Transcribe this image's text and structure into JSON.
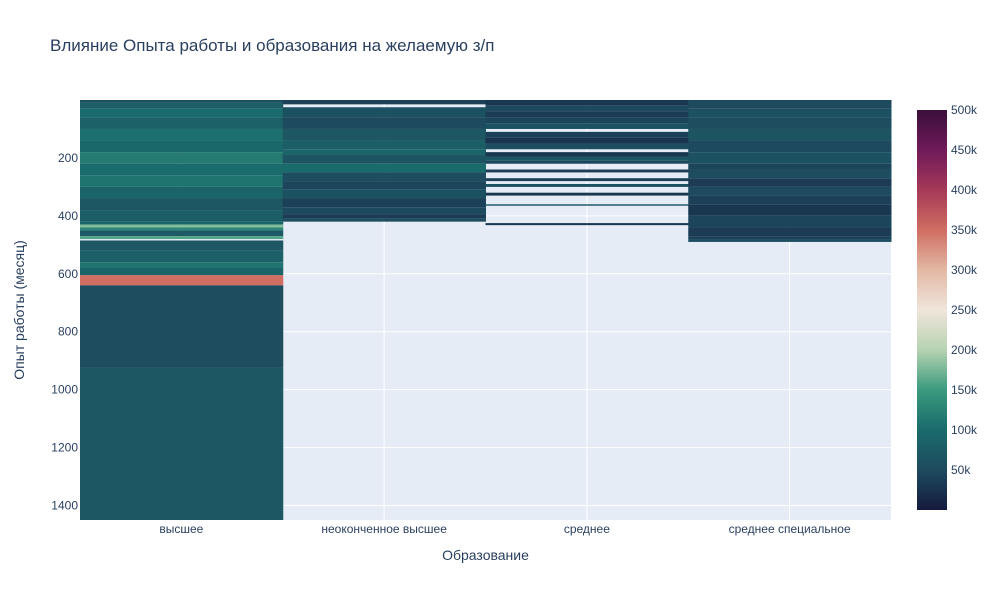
{
  "chart_data": {
    "type": "heatmap",
    "title": "Влияние Опыта работы и образования на желаемую з/п",
    "xlabel": "Образование",
    "ylabel": "Опыт работы (месяц)",
    "categories": [
      "высшее",
      "неоконченное высшее",
      "среднее",
      "среднее специальное"
    ],
    "y_ticks": [
      200,
      400,
      600,
      800,
      1000,
      1200,
      1400
    ],
    "ylim": [
      0,
      1450
    ],
    "y_reversed": true,
    "grid": true,
    "colorbar": {
      "min": 0,
      "max": 500000,
      "ticks": [
        50000,
        100000,
        150000,
        200000,
        250000,
        300000,
        350000,
        400000,
        450000,
        500000
      ],
      "tick_labels": [
        "50k",
        "100k",
        "150k",
        "200k",
        "250k",
        "300k",
        "350k",
        "400k",
        "450k",
        "500k"
      ],
      "colorscale": [
        [
          0.0,
          "#151a3c"
        ],
        [
          0.1,
          "#1d4a5e"
        ],
        [
          0.2,
          "#1a6b6b"
        ],
        [
          0.3,
          "#3a9a7e"
        ],
        [
          0.4,
          "#b6d3b1"
        ],
        [
          0.5,
          "#f0e5db"
        ],
        [
          0.6,
          "#e3b8a4"
        ],
        [
          0.7,
          "#cf6e61"
        ],
        [
          0.8,
          "#a53958"
        ],
        [
          0.9,
          "#6f1a5a"
        ],
        [
          1.0,
          "#3b0f3a"
        ]
      ]
    },
    "columns": [
      {
        "category": "высшее",
        "segments": [
          {
            "y0": 0,
            "y1": 10,
            "value": 60000
          },
          {
            "y0": 10,
            "y1": 30,
            "value": 80000
          },
          {
            "y0": 30,
            "y1": 60,
            "value": 100000
          },
          {
            "y0": 60,
            "y1": 100,
            "value": 85000
          },
          {
            "y0": 100,
            "y1": 140,
            "value": 105000
          },
          {
            "y0": 140,
            "y1": 180,
            "value": 95000
          },
          {
            "y0": 180,
            "y1": 220,
            "value": 115000
          },
          {
            "y0": 220,
            "y1": 260,
            "value": 100000
          },
          {
            "y0": 260,
            "y1": 300,
            "value": 110000
          },
          {
            "y0": 300,
            "y1": 340,
            "value": 90000
          },
          {
            "y0": 340,
            "y1": 380,
            "value": 70000
          },
          {
            "y0": 380,
            "y1": 420,
            "value": 80000
          },
          {
            "y0": 420,
            "y1": 430,
            "value": 90000
          },
          {
            "y0": 430,
            "y1": 440,
            "value": 180000
          },
          {
            "y0": 440,
            "y1": 450,
            "value": 130000
          },
          {
            "y0": 450,
            "y1": 470,
            "value": 75000
          },
          {
            "y0": 470,
            "y1": 480,
            "value": 160000
          },
          {
            "y0": 480,
            "y1": 485,
            "value": 0
          },
          {
            "y0": 485,
            "y1": 520,
            "value": 70000
          },
          {
            "y0": 520,
            "y1": 560,
            "value": 85000
          },
          {
            "y0": 560,
            "y1": 580,
            "value": 110000
          },
          {
            "y0": 580,
            "y1": 605,
            "value": 90000
          },
          {
            "y0": 605,
            "y1": 640,
            "value": 350000
          },
          {
            "y0": 640,
            "y1": 925,
            "value": 55000
          },
          {
            "y0": 925,
            "y1": 1450,
            "value": 70000
          }
        ]
      },
      {
        "category": "неоконченное высшее",
        "segments": [
          {
            "y0": 0,
            "y1": 15,
            "value": 40000
          },
          {
            "y0": 15,
            "y1": 25,
            "value": 0
          },
          {
            "y0": 25,
            "y1": 60,
            "value": 60000
          },
          {
            "y0": 60,
            "y1": 100,
            "value": 50000
          },
          {
            "y0": 100,
            "y1": 140,
            "value": 70000
          },
          {
            "y0": 140,
            "y1": 170,
            "value": 80000
          },
          {
            "y0": 170,
            "y1": 190,
            "value": 90000
          },
          {
            "y0": 190,
            "y1": 220,
            "value": 65000
          },
          {
            "y0": 220,
            "y1": 250,
            "value": 100000
          },
          {
            "y0": 250,
            "y1": 280,
            "value": 55000
          },
          {
            "y0": 280,
            "y1": 310,
            "value": 45000
          },
          {
            "y0": 310,
            "y1": 340,
            "value": 60000
          },
          {
            "y0": 340,
            "y1": 370,
            "value": 40000
          },
          {
            "y0": 370,
            "y1": 395,
            "value": 50000
          },
          {
            "y0": 395,
            "y1": 410,
            "value": 35000
          },
          {
            "y0": 410,
            "y1": 420,
            "value": 55000
          }
        ]
      },
      {
        "category": "среднее",
        "segments": [
          {
            "y0": 0,
            "y1": 20,
            "value": 30000
          },
          {
            "y0": 20,
            "y1": 40,
            "value": 50000
          },
          {
            "y0": 40,
            "y1": 60,
            "value": 35000
          },
          {
            "y0": 60,
            "y1": 80,
            "value": 45000
          },
          {
            "y0": 80,
            "y1": 100,
            "value": 60000
          },
          {
            "y0": 100,
            "y1": 110,
            "value": 0
          },
          {
            "y0": 110,
            "y1": 130,
            "value": 40000
          },
          {
            "y0": 130,
            "y1": 150,
            "value": 25000
          },
          {
            "y0": 150,
            "y1": 170,
            "value": 55000
          },
          {
            "y0": 170,
            "y1": 180,
            "value": 0
          },
          {
            "y0": 180,
            "y1": 195,
            "value": 30000
          },
          {
            "y0": 195,
            "y1": 210,
            "value": 70000
          },
          {
            "y0": 210,
            "y1": 220,
            "value": 45000
          },
          {
            "y0": 220,
            "y1": 240,
            "value": 0
          },
          {
            "y0": 240,
            "y1": 250,
            "value": 35000
          },
          {
            "y0": 250,
            "y1": 270,
            "value": 0
          },
          {
            "y0": 270,
            "y1": 280,
            "value": 40000
          },
          {
            "y0": 280,
            "y1": 290,
            "value": 0
          },
          {
            "y0": 290,
            "y1": 300,
            "value": 60000
          },
          {
            "y0": 300,
            "y1": 320,
            "value": 0
          },
          {
            "y0": 320,
            "y1": 330,
            "value": 30000
          },
          {
            "y0": 330,
            "y1": 360,
            "value": 0
          },
          {
            "y0": 360,
            "y1": 365,
            "value": 70000
          },
          {
            "y0": 365,
            "y1": 425,
            "value": 0
          },
          {
            "y0": 425,
            "y1": 432,
            "value": 30000
          }
        ]
      },
      {
        "category": "среднее специальное",
        "segments": [
          {
            "y0": 0,
            "y1": 30,
            "value": 50000
          },
          {
            "y0": 30,
            "y1": 60,
            "value": 60000
          },
          {
            "y0": 60,
            "y1": 100,
            "value": 55000
          },
          {
            "y0": 100,
            "y1": 140,
            "value": 65000
          },
          {
            "y0": 140,
            "y1": 180,
            "value": 50000
          },
          {
            "y0": 180,
            "y1": 220,
            "value": 60000
          },
          {
            "y0": 220,
            "y1": 240,
            "value": 45000
          },
          {
            "y0": 240,
            "y1": 270,
            "value": 55000
          },
          {
            "y0": 270,
            "y1": 300,
            "value": 35000
          },
          {
            "y0": 300,
            "y1": 330,
            "value": 50000
          },
          {
            "y0": 330,
            "y1": 360,
            "value": 40000
          },
          {
            "y0": 360,
            "y1": 400,
            "value": 30000
          },
          {
            "y0": 400,
            "y1": 440,
            "value": 45000
          },
          {
            "y0": 440,
            "y1": 470,
            "value": 35000
          },
          {
            "y0": 470,
            "y1": 480,
            "value": 40000
          },
          {
            "y0": 480,
            "y1": 490,
            "value": 55000
          }
        ]
      }
    ]
  }
}
